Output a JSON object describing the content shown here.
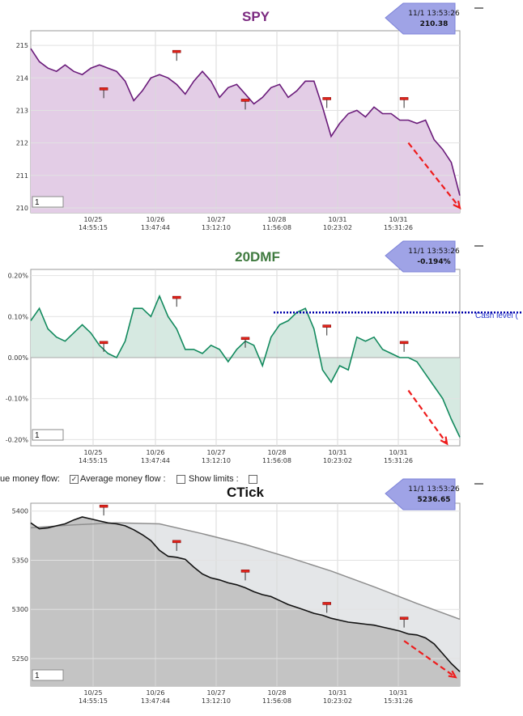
{
  "controls": {
    "true_flow_label": "ue money flow:",
    "avg_flow_label": "Average money flow :",
    "show_limits_label": "Show limits :"
  },
  "colors": {
    "spy_line": "#6a1b7a",
    "spy_fill": "#e3cde6",
    "spy_title": "#7b2a80",
    "dmf_line": "#138a5e",
    "dmf_fill": "#d6e9e1",
    "dmf_title": "#3f7a3f",
    "ctick_line": "#111111",
    "ctick_fill": "#c4c4c4",
    "ctick_avg": "#8e8e8e",
    "ctick_avg_fill": "#e4e6e8",
    "trend_arrow": "#ee1c1c",
    "cash_line": "#0000aa",
    "badge_fill": "#9fa3e6"
  },
  "chart_data": [
    {
      "id": "spy",
      "type": "area",
      "title": "SPY",
      "badge": {
        "time": "11/1 13:53:26",
        "value": "210.38"
      },
      "zoom_input": "1",
      "ylim": [
        209.85,
        215.45
      ],
      "yticks": [
        "215",
        "214",
        "213",
        "212",
        "211",
        "210"
      ],
      "xlabels": [
        [
          "10/25",
          "14:55:15"
        ],
        [
          "10/26",
          "13:47:44"
        ],
        [
          "10/27",
          "13:12:10"
        ],
        [
          "10/28",
          "11:56:08"
        ],
        [
          "10/31",
          "10:23:02"
        ],
        [
          "10/31",
          "15:31:26"
        ]
      ],
      "series": [
        {
          "x": [
            0,
            2,
            4,
            6,
            8,
            10,
            12,
            14,
            16,
            18,
            20,
            22,
            24,
            26,
            28,
            30,
            32,
            34,
            36,
            38,
            40,
            42,
            44,
            46,
            48,
            50,
            52,
            54,
            56,
            58,
            60,
            62,
            64,
            66,
            68,
            70,
            72,
            74,
            76,
            78,
            80,
            82,
            84,
            86,
            88,
            90,
            92,
            94,
            96,
            98,
            100
          ],
          "values": [
            214.9,
            214.5,
            214.3,
            214.2,
            214.4,
            214.2,
            214.1,
            214.3,
            214.4,
            214.3,
            214.2,
            213.9,
            213.3,
            213.6,
            214.0,
            214.1,
            214.0,
            213.8,
            213.5,
            213.9,
            214.2,
            213.9,
            213.4,
            213.7,
            213.8,
            213.5,
            213.2,
            213.4,
            213.7,
            213.8,
            213.4,
            213.6,
            213.9,
            213.9,
            213.1,
            212.2,
            212.6,
            212.9,
            213.0,
            212.8,
            213.1,
            212.9,
            212.9,
            212.7,
            212.7,
            212.6,
            212.7,
            212.1,
            211.8,
            211.4,
            210.38
          ]
        }
      ],
      "markers": [
        {
          "x": 17,
          "value": 213.45
        },
        {
          "x": 34,
          "value": 214.6
        },
        {
          "x": 50,
          "value": 213.1
        },
        {
          "x": 69,
          "value": 213.15
        },
        {
          "x": 87,
          "value": 213.15
        }
      ],
      "trend": {
        "x0": 88,
        "y0": 212.0,
        "x1": 100,
        "y1": 210.0
      }
    },
    {
      "id": "dmf",
      "type": "area",
      "title": "20DMF",
      "badge": {
        "time": "11/1 13:53:26",
        "value": "-0.194%"
      },
      "zoom_input": "1",
      "ylim": [
        -0.215,
        0.215
      ],
      "yticks": [
        "0.20%",
        "0.10%",
        "0.00%",
        "-0.10%",
        "-0.20%"
      ],
      "ytick_values": [
        0.2,
        0.1,
        0.0,
        -0.1,
        -0.2
      ],
      "xlabels": [
        [
          "10/25",
          "14:55:15"
        ],
        [
          "10/26",
          "13:47:44"
        ],
        [
          "10/27",
          "13:12:10"
        ],
        [
          "10/28",
          "11:56:08"
        ],
        [
          "10/31",
          "10:23:02"
        ],
        [
          "10/31",
          "15:31:26"
        ]
      ],
      "cash_level": {
        "label": "Cash level (",
        "value": 0.11
      },
      "series": [
        {
          "x": [
            0,
            2,
            4,
            6,
            8,
            10,
            12,
            14,
            16,
            18,
            20,
            22,
            24,
            26,
            28,
            30,
            32,
            34,
            36,
            38,
            40,
            42,
            44,
            46,
            48,
            50,
            52,
            54,
            56,
            58,
            60,
            62,
            64,
            66,
            68,
            70,
            72,
            74,
            76,
            78,
            80,
            82,
            84,
            86,
            88,
            90,
            92,
            94,
            96,
            98,
            100
          ],
          "values": [
            0.09,
            0.12,
            0.07,
            0.05,
            0.04,
            0.06,
            0.08,
            0.06,
            0.03,
            0.01,
            0.0,
            0.04,
            0.12,
            0.12,
            0.1,
            0.15,
            0.1,
            0.07,
            0.02,
            0.02,
            0.01,
            0.03,
            0.02,
            -0.01,
            0.02,
            0.04,
            0.03,
            -0.02,
            0.05,
            0.08,
            0.09,
            0.11,
            0.12,
            0.07,
            -0.03,
            -0.06,
            -0.02,
            -0.03,
            0.05,
            0.04,
            0.05,
            0.02,
            0.01,
            0.0,
            0.0,
            -0.01,
            -0.04,
            -0.07,
            -0.1,
            -0.15,
            -0.194
          ]
        }
      ],
      "markers": [
        {
          "x": 17,
          "value": 0.02
        },
        {
          "x": 34,
          "value": 0.13
        },
        {
          "x": 50,
          "value": 0.03
        },
        {
          "x": 69,
          "value": 0.06
        },
        {
          "x": 87,
          "value": 0.02
        }
      ],
      "trend": {
        "x0": 88,
        "y0": -0.08,
        "x1": 97,
        "y1": -0.21
      }
    },
    {
      "id": "ctick",
      "type": "area",
      "title": "CTick",
      "badge": {
        "time": "11/1 13:53:26",
        "value": "5236.65"
      },
      "zoom_input": "1",
      "ylim": [
        5222,
        5408
      ],
      "yticks": [
        "5400",
        "5350",
        "5300",
        "5250"
      ],
      "ytick_values": [
        5400,
        5350,
        5300,
        5250
      ],
      "xlabels": [
        [
          "10/25",
          "14:55:15"
        ],
        [
          "10/26",
          "13:47:44"
        ],
        [
          "10/27",
          "13:12:10"
        ],
        [
          "10/28",
          "11:56:08"
        ],
        [
          "10/31",
          "10:23:02"
        ],
        [
          "10/31",
          "15:31:26"
        ]
      ],
      "series": [
        {
          "x": [
            0,
            2,
            4,
            6,
            8,
            10,
            12,
            14,
            16,
            18,
            20,
            22,
            24,
            26,
            28,
            30,
            32,
            34,
            36,
            38,
            40,
            42,
            44,
            46,
            48,
            50,
            52,
            54,
            56,
            58,
            60,
            62,
            64,
            66,
            68,
            70,
            72,
            74,
            76,
            78,
            80,
            82,
            84,
            86,
            88,
            90,
            92,
            94,
            96,
            98,
            100
          ],
          "values": [
            5388,
            5382,
            5383,
            5385,
            5387,
            5391,
            5394,
            5392,
            5390,
            5388,
            5387,
            5385,
            5381,
            5376,
            5370,
            5360,
            5354,
            5353,
            5351,
            5343,
            5336,
            5332,
            5330,
            5327,
            5325,
            5322,
            5318,
            5315,
            5313,
            5309,
            5305,
            5302,
            5299,
            5296,
            5294,
            5291,
            5289,
            5287,
            5286,
            5285,
            5284,
            5282,
            5280,
            5278,
            5275,
            5274,
            5271,
            5265,
            5255,
            5245,
            5236.65
          ]
        },
        {
          "x": [
            0,
            10,
            20,
            30,
            40,
            50,
            60,
            70,
            80,
            90,
            100
          ],
          "values": [
            5383,
            5386,
            5388,
            5387,
            5377,
            5366,
            5353,
            5339,
            5323,
            5306,
            5290
          ]
        }
      ],
      "markers": [
        {
          "x": 17,
          "value": 5398
        },
        {
          "x": 34,
          "value": 5362
        },
        {
          "x": 50,
          "value": 5332
        },
        {
          "x": 69,
          "value": 5299
        },
        {
          "x": 87,
          "value": 5284
        }
      ],
      "trend": {
        "x0": 87,
        "y0": 5268,
        "x1": 99,
        "y1": 5231
      }
    }
  ]
}
